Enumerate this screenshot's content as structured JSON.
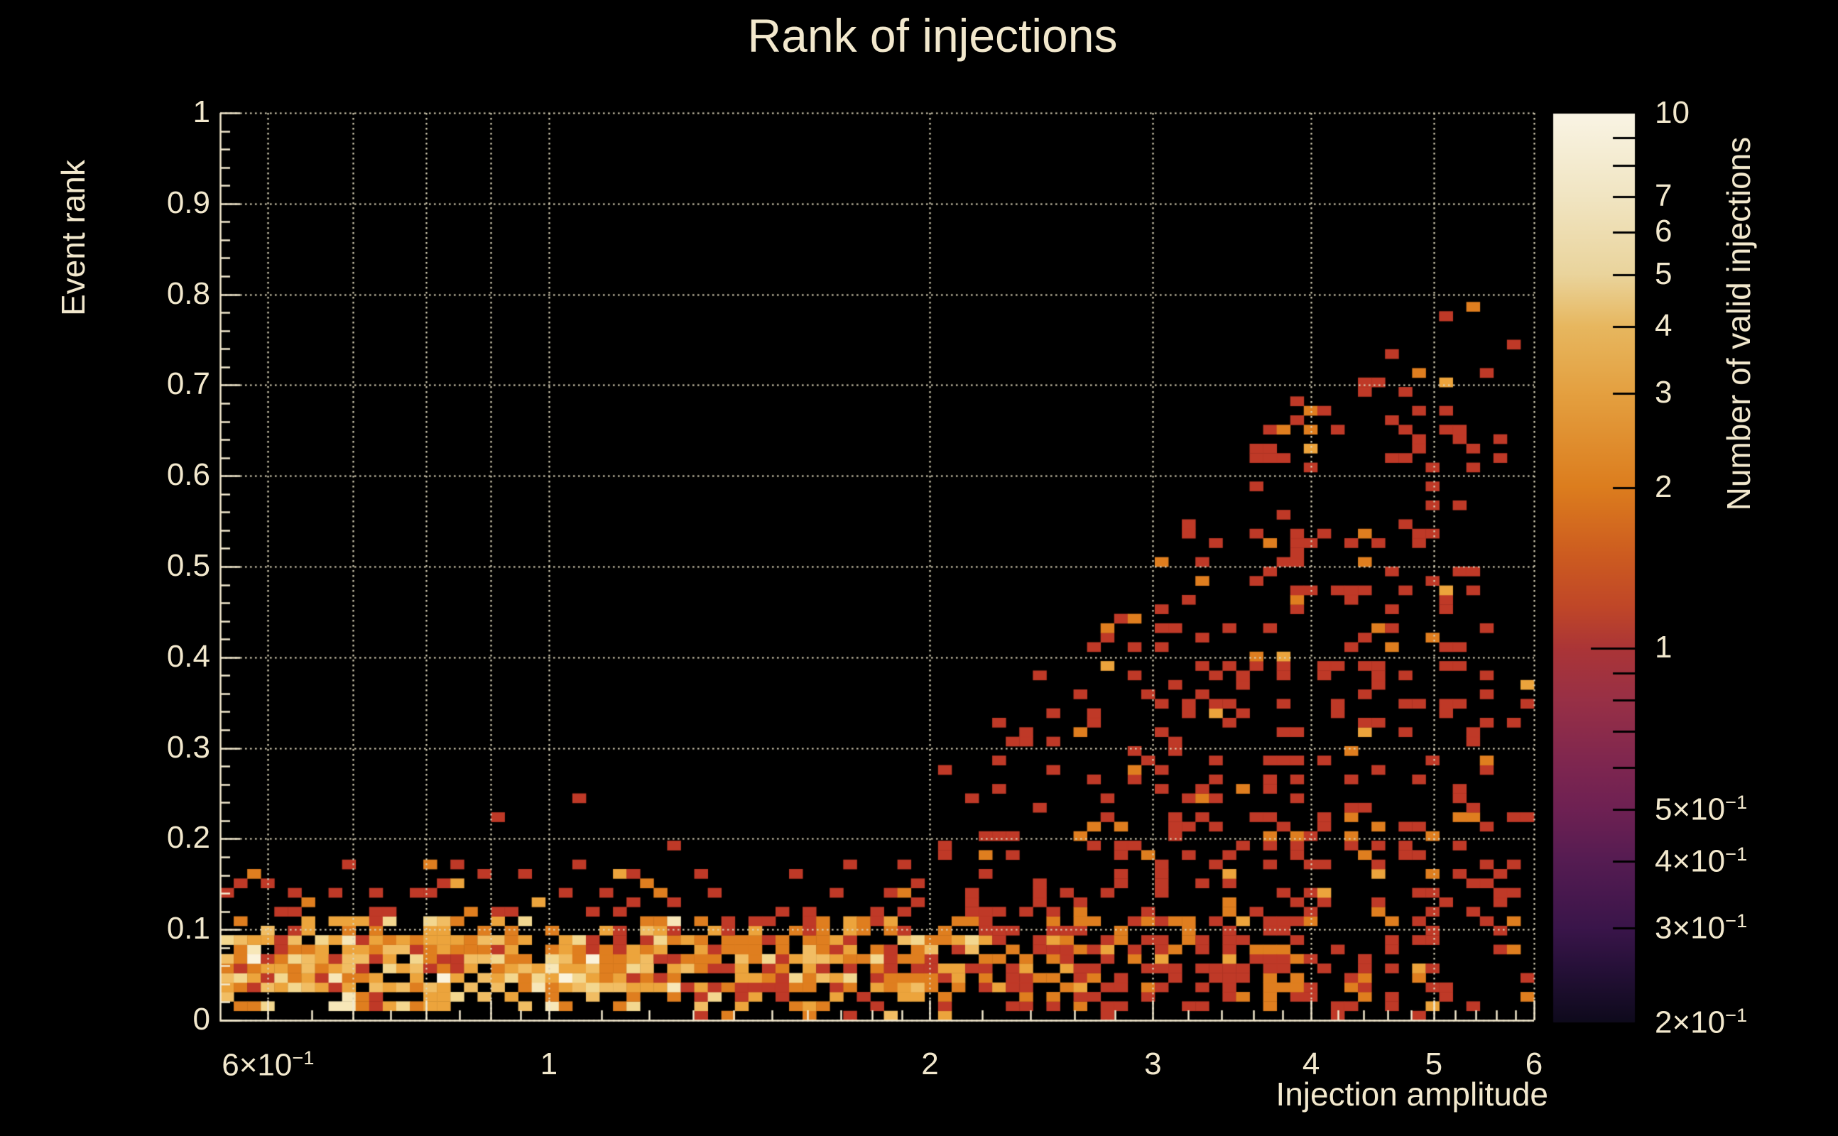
{
  "title": "Rank of injections",
  "colors": {
    "background": "#000000",
    "text": "#f2e8cd",
    "grid": "#ddd5b9",
    "axis": "#f2e8cd",
    "colorbar_tick": "#000000"
  },
  "chart_data": {
    "type": "heatmap",
    "title": "Rank of injections",
    "xlabel": "Injection amplitude",
    "ylabel": "Event rank",
    "zlabel": "Number of valid injections",
    "x_scale": "log",
    "x_range": [
      0.55,
      6.0
    ],
    "y_scale": "linear",
    "y_range": [
      0,
      1
    ],
    "z_scale": "log",
    "z_range": [
      0.2,
      10
    ],
    "grid": true,
    "bins": {
      "nx": 97,
      "ny": 96
    },
    "x_ticks": [
      {
        "v": 0.6,
        "t": "6×10",
        "e": "−1"
      },
      {
        "v": 1,
        "t": "1"
      },
      {
        "v": 2,
        "t": "2"
      },
      {
        "v": 3,
        "t": "3"
      },
      {
        "v": 4,
        "t": "4"
      },
      {
        "v": 5,
        "t": "5"
      },
      {
        "v": 6,
        "t": "6"
      }
    ],
    "x_gridlines": [
      0.6,
      0.7,
      0.8,
      0.9,
      1,
      2,
      3,
      4,
      5,
      6
    ],
    "x_minor_ticks": [
      0.65,
      0.75,
      0.85,
      0.95,
      1.1,
      1.2,
      1.3,
      1.4,
      1.5,
      1.6,
      1.7,
      1.8,
      1.9,
      2.2,
      2.4,
      2.6,
      2.8,
      3.2,
      3.4,
      3.6,
      3.8,
      4.2,
      4.4,
      4.6,
      4.8,
      5.2,
      5.4,
      5.6,
      5.8
    ],
    "y_ticks": [
      {
        "v": 1,
        "t": "1"
      },
      {
        "v": 0.9,
        "t": "0.9"
      },
      {
        "v": 0.8,
        "t": "0.8"
      },
      {
        "v": 0.7,
        "t": "0.7"
      },
      {
        "v": 0.6,
        "t": "0.6"
      },
      {
        "v": 0.5,
        "t": "0.5"
      },
      {
        "v": 0.4,
        "t": "0.4"
      },
      {
        "v": 0.3,
        "t": "0.3"
      },
      {
        "v": 0.2,
        "t": "0.2"
      },
      {
        "v": 0.1,
        "t": "0.1"
      },
      {
        "v": 0,
        "t": "0"
      }
    ],
    "y_minor_step": 0.02,
    "z_labels": [
      {
        "v": 10,
        "t": "10"
      },
      {
        "v": 7,
        "t": "7"
      },
      {
        "v": 6,
        "t": "6"
      },
      {
        "v": 5,
        "t": "5"
      },
      {
        "v": 4,
        "t": "4"
      },
      {
        "v": 3,
        "t": "3"
      },
      {
        "v": 2,
        "t": "2"
      },
      {
        "v": 1,
        "t": "1"
      },
      {
        "v": 0.5,
        "t": "5×10",
        "e": "−1"
      },
      {
        "v": 0.4,
        "t": "4×10",
        "e": "−1"
      },
      {
        "v": 0.3,
        "t": "3×10",
        "e": "−1"
      },
      {
        "v": 0.2,
        "t": "2×10",
        "e": "−1"
      }
    ],
    "z_tick_values": [
      9,
      8,
      7,
      6,
      5,
      4,
      3,
      2,
      1,
      0.9,
      0.8,
      0.7,
      0.6,
      0.5,
      0.4,
      0.3
    ],
    "z_long_tick": 1,
    "colorbar_gradient": [
      {
        "v": 10,
        "color": "#f9f4e4"
      },
      {
        "v": 7,
        "color": "#f1e5c2"
      },
      {
        "v": 5,
        "color": "#ead49c"
      },
      {
        "v": 4,
        "color": "#e7b75f"
      },
      {
        "v": 3,
        "color": "#e4a040"
      },
      {
        "v": 2,
        "color": "#dc7d1e"
      },
      {
        "v": 1.5,
        "color": "#cd5c20"
      },
      {
        "v": 1.2,
        "color": "#c04728"
      },
      {
        "v": 1,
        "color": "#ab3537"
      },
      {
        "v": 0.8,
        "color": "#983046"
      },
      {
        "v": 0.6,
        "color": "#7d2650"
      },
      {
        "v": 0.5,
        "color": "#6e2153"
      },
      {
        "v": 0.4,
        "color": "#551c52"
      },
      {
        "v": 0.3,
        "color": "#3a154a"
      },
      {
        "v": 0.25,
        "color": "#251037"
      },
      {
        "v": 0.2,
        "color": "#0e0a1c"
      }
    ],
    "cell_palette": {
      "1": "#bf3927",
      "2": "#df7e1f",
      "3": "#eca43c",
      "4": "#f1bd63",
      "6": "#f3d78f",
      "8": "#f7e7b8",
      "10": "#fbf3dc"
    },
    "distribution": {
      "seed": 20240613,
      "description": "Dense bright band of counts 1-10 at event rank 0.03-0.12 across all amplitudes (brightest, near-white cells below amplitude ~1.5, dimming to red/orange toward high amplitude); sparse halo of single counts up to rank ~0.17 everywhere; above amplitude ~2 a scatter wedge of mostly count-1 (red) cells whose maximum rank grows from ~0.25 at amplitude 2 to ~0.79 at amplitude ~5.4; empty above rank 0.8 and beyond amplitude ~5.6.",
      "band_rows": [
        {
          "r0": 0.0,
          "r1": 0.012,
          "p": [
            [
              2,
              0.12
            ],
            [
              5,
              0.1
            ],
            [
              6,
              0.04
            ]
          ]
        },
        {
          "r0": 0.012,
          "r1": 0.03,
          "p": [
            [
              2,
              0.45
            ],
            [
              3,
              0.38
            ],
            [
              4,
              0.3
            ],
            [
              5,
              0.22
            ],
            [
              6,
              0.08
            ]
          ]
        },
        {
          "r0": 0.03,
          "r1": 0.095,
          "p": [
            [
              1.2,
              0.88
            ],
            [
              1.6,
              0.85
            ],
            [
              2.2,
              0.78
            ],
            [
              2.8,
              0.65
            ],
            [
              3.5,
              0.52
            ],
            [
              4.2,
              0.4
            ],
            [
              5.0,
              0.3
            ],
            [
              5.6,
              0.16
            ],
            [
              6,
              0.08
            ]
          ]
        },
        {
          "r0": 0.095,
          "r1": 0.115,
          "p": [
            [
              2,
              0.55
            ],
            [
              3,
              0.45
            ],
            [
              4,
              0.35
            ],
            [
              5,
              0.25
            ],
            [
              6,
              0.12
            ]
          ]
        },
        {
          "r0": 0.115,
          "r1": 0.145,
          "p": [
            [
              2,
              0.22
            ],
            [
              6,
              0.26
            ]
          ]
        },
        {
          "r0": 0.145,
          "r1": 0.175,
          "p": [
            [
              2,
              0.1
            ],
            [
              6,
              0.15
            ]
          ]
        }
      ],
      "wedge": {
        "v_min": 1.95,
        "max_r_points": [
          [
            0.29,
            0.24
          ],
          [
            0.4,
            0.42
          ],
          [
            0.48,
            0.52
          ],
          [
            0.545,
            0.62
          ],
          [
            0.6,
            0.7
          ],
          [
            0.66,
            0.745
          ],
          [
            0.7,
            0.78
          ],
          [
            0.75,
            0.8
          ]
        ],
        "p_base": 0.26,
        "p_top_factor": 0.5,
        "sparse_left_vmax": 2.4,
        "sparse_left_factor": 0.55,
        "right_cut": 5.6,
        "right_factor": 0.1
      },
      "stray": {
        "r0": 0.175,
        "r1": 0.26,
        "v_max": 1.95,
        "p": 0.004
      },
      "value_weights": {
        "band_bright": [
          [
            1,
            0.12
          ],
          [
            2,
            0.28
          ],
          [
            3,
            0.24
          ],
          [
            4,
            0.16
          ],
          [
            6,
            0.12
          ],
          [
            8,
            0.06
          ],
          [
            10,
            0.02
          ]
        ],
        "band_mid": [
          [
            1,
            0.3
          ],
          [
            2,
            0.38
          ],
          [
            3,
            0.2
          ],
          [
            4,
            0.08
          ],
          [
            6,
            0.04
          ]
        ],
        "band_dim": [
          [
            1,
            0.55
          ],
          [
            2,
            0.32
          ],
          [
            3,
            0.1
          ],
          [
            4,
            0.03
          ]
        ],
        "band_far": [
          [
            1,
            0.72
          ],
          [
            2,
            0.24
          ],
          [
            3,
            0.04
          ]
        ],
        "scatter": [
          [
            1,
            0.84
          ],
          [
            2,
            0.12
          ],
          [
            3,
            0.04
          ]
        ]
      },
      "band_weight_breaks": [
        1.3,
        2.2,
        3.2
      ],
      "outliers": [
        {
          "x": 0.91,
          "y": 0.222,
          "value": 1
        },
        {
          "x": 5.43,
          "y": 0.785,
          "value": 2
        },
        {
          "x": 5.1,
          "y": 0.775,
          "value": 1
        },
        {
          "x": 5.55,
          "y": 0.715,
          "value": 1
        }
      ]
    }
  }
}
